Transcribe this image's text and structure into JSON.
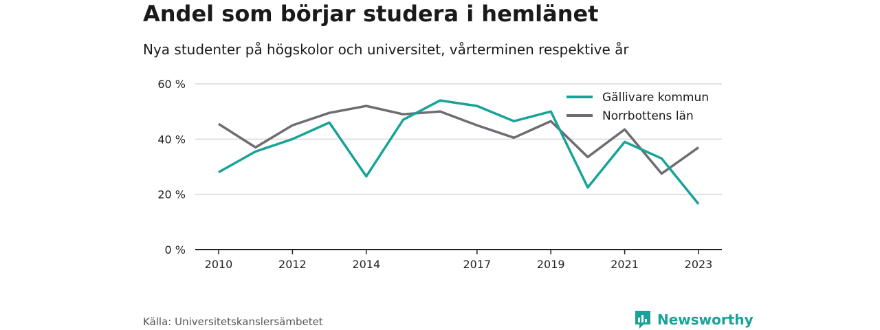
{
  "header": {
    "title": "Andel som börjar studera i hemlänet",
    "subtitle": "Nya studenter på högskolor och universitet, vårterminen respektive år"
  },
  "footer": {
    "source": "Källa: Universitetskanslersämbetet",
    "brand": "Newsworthy"
  },
  "colors": {
    "gallivare": "#17a398",
    "norrbotten": "#6e6b72",
    "grid": "#d9d9d9",
    "axis": "#222222",
    "brand": "#17a398"
  },
  "chart_data": {
    "type": "line",
    "x": [
      2010,
      2011,
      2012,
      2013,
      2014,
      2015,
      2016,
      2017,
      2018,
      2019,
      2020,
      2021,
      2022,
      2023
    ],
    "x_tick_labels": [
      "2010",
      "2012",
      "2014",
      "2017",
      "2019",
      "2021",
      "2023"
    ],
    "x_tick_values": [
      2010,
      2012,
      2014,
      2017,
      2019,
      2021,
      2023
    ],
    "y_ticks": [
      0,
      20,
      40,
      60
    ],
    "y_tick_labels": [
      "0 %",
      "20 %",
      "40 %",
      "60 %"
    ],
    "ylim": [
      0,
      60
    ],
    "grid": true,
    "legend_position": "top-right",
    "series": [
      {
        "name": "Gällivare kommun",
        "color": "#17a398",
        "values": [
          28,
          35.5,
          40,
          46,
          26.5,
          47,
          54,
          52,
          46.5,
          50,
          22.5,
          39,
          33,
          16.5
        ]
      },
      {
        "name": "Norrbottens län",
        "color": "#6e6b72",
        "values": [
          45.5,
          37,
          45,
          49.5,
          52,
          49,
          50,
          45,
          40.5,
          46.5,
          33.5,
          43.5,
          27.5,
          37
        ]
      }
    ]
  }
}
